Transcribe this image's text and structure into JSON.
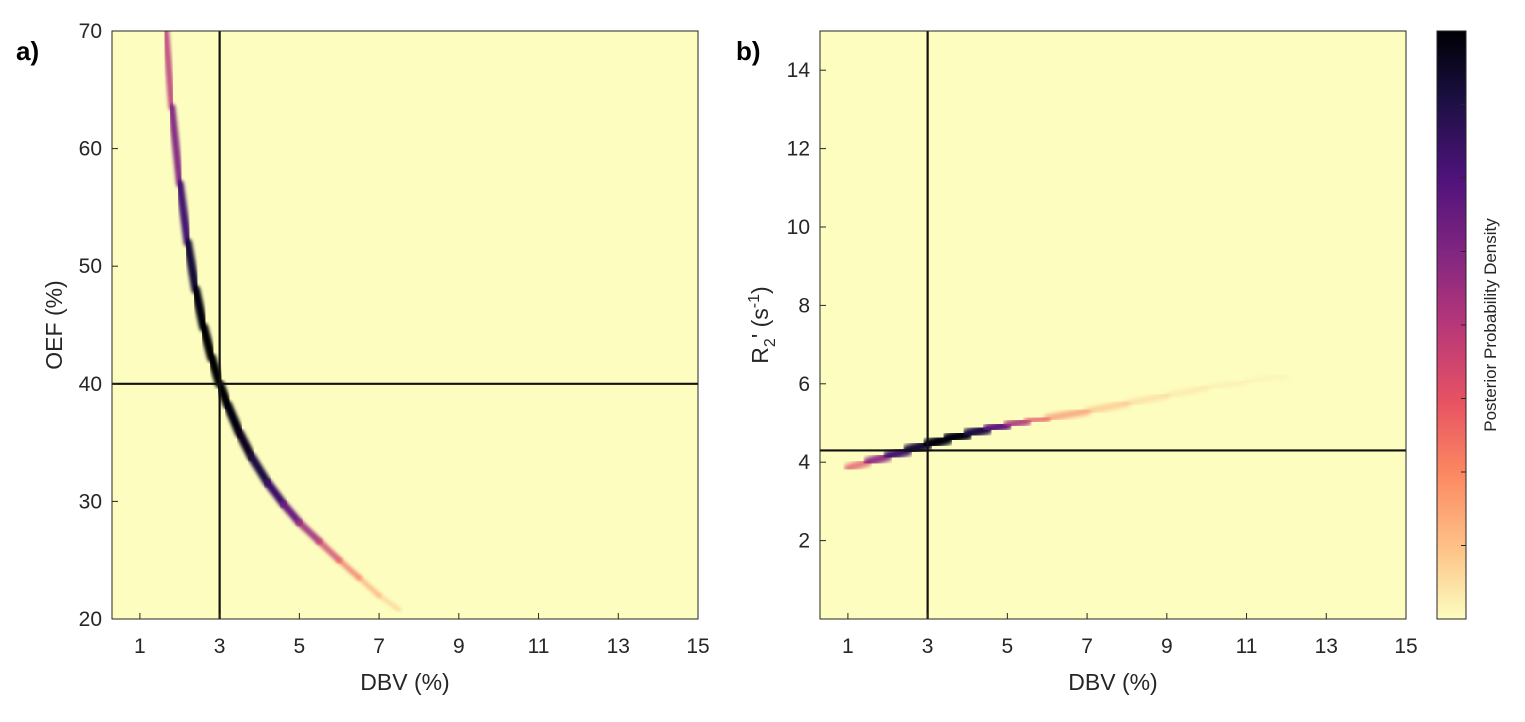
{
  "figure": {
    "panels": [
      {
        "letter": "a)",
        "xlabel": "DBV (%)",
        "ylabel": "OEF (%)"
      },
      {
        "letter": "b)",
        "xlabel": "DBV (%)",
        "ylabel_main": "R",
        "ylabel_sub": "2",
        "ylabel_rest": "' (s",
        "ylabel_sup": "-1",
        "ylabel_close": ")"
      }
    ],
    "colorbar": {
      "label": "Posterior Probability Density",
      "colormap": "magma",
      "stops": [
        "#fcfdbf",
        "#fec287",
        "#fb8761",
        "#e75263",
        "#b73779",
        "#822681",
        "#4f127b",
        "#1c1044",
        "#000004"
      ]
    },
    "background_color": "#fcfdbf"
  },
  "chart_data": [
    {
      "type": "heatmap",
      "panel": "a)",
      "xlabel": "DBV (%)",
      "ylabel": "OEF (%)",
      "xlim": [
        0.3,
        15
      ],
      "ylim": [
        20,
        70
      ],
      "xticks": [
        1,
        3,
        5,
        7,
        9,
        11,
        13,
        15
      ],
      "yticks": [
        20,
        30,
        40,
        50,
        60,
        70
      ],
      "reference_lines": {
        "x": 3,
        "y": 40
      },
      "ridge": {
        "description_free": true,
        "x": [
          1.65,
          1.8,
          2.0,
          2.2,
          2.4,
          2.6,
          2.8,
          3.0,
          3.2,
          3.5,
          3.8,
          4.2,
          4.6,
          5.0,
          5.5,
          6.0,
          6.5,
          7.0,
          7.5
        ],
        "y": [
          70.0,
          63.5,
          57.0,
          52.0,
          48.0,
          44.8,
          42.2,
          40.0,
          38.2,
          35.8,
          33.8,
          31.6,
          29.8,
          28.2,
          26.6,
          25.0,
          23.5,
          22.0,
          20.8
        ],
        "density": [
          0.45,
          0.55,
          0.7,
          0.85,
          0.95,
          1.0,
          1.0,
          1.0,
          1.0,
          0.98,
          0.92,
          0.85,
          0.75,
          0.62,
          0.5,
          0.38,
          0.27,
          0.18,
          0.1
        ]
      }
    },
    {
      "type": "heatmap",
      "panel": "b)",
      "xlabel": "DBV (%)",
      "ylabel": "R2' (s-1)",
      "xlim": [
        0.3,
        15
      ],
      "ylim": [
        0,
        15
      ],
      "xticks": [
        1,
        3,
        5,
        7,
        9,
        11,
        13,
        15
      ],
      "yticks": [
        2,
        4,
        6,
        8,
        10,
        12,
        14
      ],
      "reference_lines": {
        "x": 3,
        "y": 4.3
      },
      "ridge": {
        "x": [
          1.0,
          1.5,
          2.0,
          2.5,
          3.0,
          3.5,
          4.0,
          4.5,
          5.0,
          5.5,
          6.0,
          7.0,
          8.0,
          9.0,
          10.0,
          11.0,
          12.0
        ],
        "y": [
          3.85,
          4.0,
          4.15,
          4.3,
          4.45,
          4.6,
          4.72,
          4.85,
          4.95,
          5.05,
          5.12,
          5.3,
          5.5,
          5.7,
          5.9,
          6.05,
          6.2
        ],
        "density": [
          0.3,
          0.5,
          0.7,
          0.85,
          0.95,
          1.0,
          0.95,
          0.8,
          0.62,
          0.45,
          0.33,
          0.22,
          0.15,
          0.1,
          0.07,
          0.05,
          0.03
        ]
      }
    }
  ]
}
